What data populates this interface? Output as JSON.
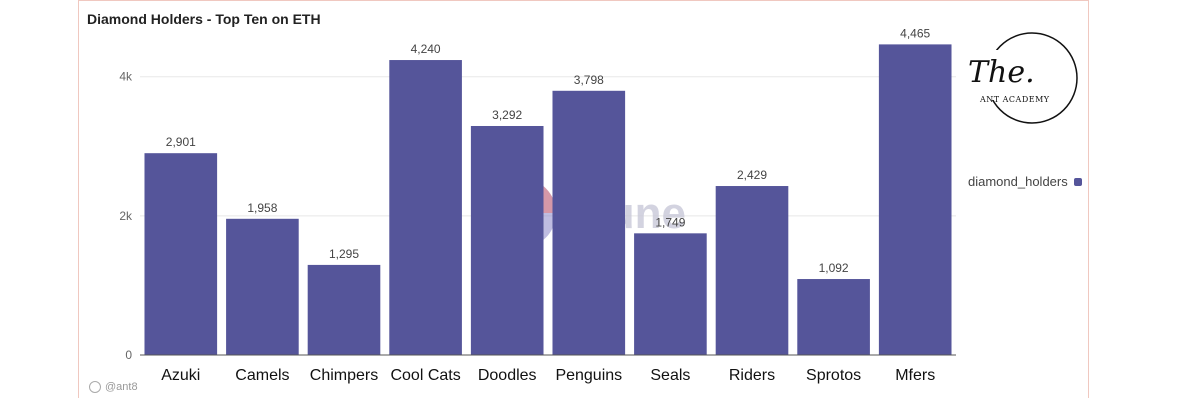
{
  "title": "Diamond Holders - Top Ten on ETH",
  "footer_user": "@ant8",
  "logo": {
    "script": "The.",
    "sub": "ANT ACADEMY"
  },
  "watermark": "Dune",
  "colors": {
    "bar": "#55559a",
    "grid": "#e8e8e8",
    "axis": "#555555",
    "watermark_text": "#c9c9d9",
    "watermark_a": "#e87a7a",
    "watermark_b": "#8a86c9"
  },
  "chart_data": {
    "type": "bar",
    "categories": [
      "Azuki",
      "Camels",
      "Chimpers",
      "Cool Cats",
      "Doodles",
      "Penguins",
      "Seals",
      "Riders",
      "Sprotos",
      "Mfers"
    ],
    "series": [
      {
        "name": "diamond_holders",
        "values": [
          2901,
          1958,
          1295,
          4240,
          3292,
          3798,
          1749,
          2429,
          1092,
          4465
        ]
      }
    ],
    "data_labels": [
      "2,901",
      "1,958",
      "1,295",
      "4,240",
      "3,292",
      "3,798",
      "1,749",
      "2,429",
      "1,092",
      "4,465"
    ],
    "ylim": [
      0,
      4600
    ],
    "yticks": [
      0,
      2000,
      4000
    ],
    "ytick_labels": [
      "0",
      "2k",
      "4k"
    ],
    "grid": true,
    "legend_position": "right",
    "xlabel": "",
    "ylabel": ""
  }
}
